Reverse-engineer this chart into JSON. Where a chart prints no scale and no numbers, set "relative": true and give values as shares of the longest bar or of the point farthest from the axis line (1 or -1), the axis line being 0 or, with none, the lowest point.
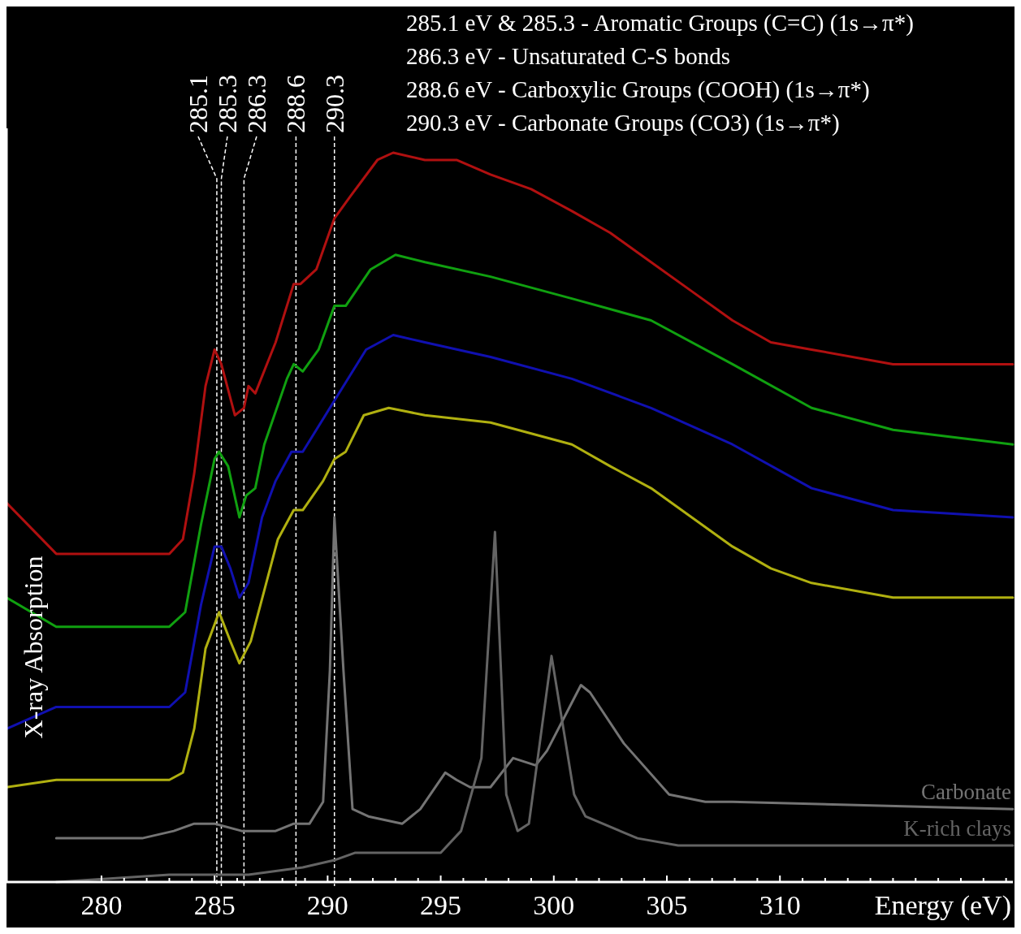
{
  "chart_data": {
    "type": "line",
    "relative": true,
    "xlabel": "Energy (eV)",
    "ylabel": "X-ray Absorption",
    "annotations": [
      "285.1 eV & 285.3 - Aromatic Groups (C=C) (1s→π*)",
      "286.3 eV - Unsaturated C-S bonds",
      "288.6 eV - Carboxylic Groups (COOH) (1s→π*)",
      "290.3 eV - Carbonate Groups (CO3) (1s→π*)"
    ],
    "xlim": [
      275.8,
      320.3
    ],
    "xticks": [
      280,
      {
        "value": 281,
        "label": null
      },
      {
        "value": 282,
        "label": null
      },
      {
        "value": 283,
        "label": null
      },
      {
        "value": 284,
        "label": null
      },
      285,
      {
        "value": 286,
        "label": null
      },
      {
        "value": 287,
        "label": null
      },
      {
        "value": 288,
        "label": null
      },
      {
        "value": 289,
        "label": null
      },
      290,
      {
        "value": 291,
        "label": null
      },
      {
        "value": 292,
        "label": null
      },
      {
        "value": 293,
        "label": null
      },
      {
        "value": 294,
        "label": null
      },
      295,
      {
        "value": 296,
        "label": null
      },
      {
        "value": 297,
        "label": null
      },
      {
        "value": 298,
        "label": null
      },
      {
        "value": 299,
        "label": null
      },
      300,
      {
        "value": 301,
        "label": null
      },
      {
        "value": 302,
        "label": null
      },
      {
        "value": 303,
        "label": null
      },
      {
        "value": 304,
        "label": null
      },
      305,
      {
        "value": 306,
        "label": null
      },
      {
        "value": 307,
        "label": null
      },
      {
        "value": 308,
        "label": null
      },
      {
        "value": 309,
        "label": null
      },
      310,
      {
        "value": 311,
        "label": null
      },
      {
        "value": 312,
        "label": null
      },
      {
        "value": 313,
        "label": null
      },
      {
        "value": 314,
        "label": null
      },
      {
        "value": 315,
        "label": null
      },
      {
        "value": 316,
        "label": null
      },
      {
        "value": 317,
        "label": null
      },
      {
        "value": 318,
        "label": null
      },
      {
        "value": 319,
        "label": null
      },
      {
        "value": 320,
        "label": null
      }
    ],
    "ref_lines": [
      {
        "axis": "x",
        "value": 285.1,
        "label": "285.1",
        "color": "#ffffff",
        "line_style": "dashed"
      },
      {
        "axis": "x",
        "value": 285.3,
        "label": "285.3",
        "color": "#ffffff",
        "line_style": "dashed"
      },
      {
        "axis": "x",
        "value": 286.3,
        "label": "286.3",
        "color": "#ffffff",
        "line_style": "dashed"
      },
      {
        "axis": "x",
        "value": 288.6,
        "label": "288.6",
        "color": "#ffffff",
        "line_style": "dashed"
      },
      {
        "axis": "x",
        "value": 290.3,
        "label": "290.3",
        "color": "#ffffff",
        "line_style": "dashed"
      }
    ],
    "series": [
      {
        "color": "#b01010",
        "x": [
          275.8,
          278.0,
          283.0,
          283.6,
          284.1,
          284.6,
          285.0,
          285.3,
          285.9,
          286.3,
          286.5,
          286.8,
          287.7,
          288.5,
          288.8,
          289.5,
          290.3,
          291.0,
          292.2,
          292.9,
          294.3,
          295.7,
          297.2,
          299.0,
          300.8,
          302.5,
          304.3,
          306.1,
          307.9,
          309.6,
          311.4,
          315.0,
          320.3
        ],
        "values": [
          0.52,
          0.45,
          0.45,
          0.47,
          0.56,
          0.68,
          0.73,
          0.71,
          0.64,
          0.65,
          0.68,
          0.67,
          0.74,
          0.82,
          0.82,
          0.84,
          0.91,
          0.94,
          0.99,
          1.0,
          0.99,
          0.99,
          0.97,
          0.95,
          0.92,
          0.89,
          0.85,
          0.81,
          0.77,
          0.74,
          0.73,
          0.71,
          0.71
        ]
      },
      {
        "color": "#10a010",
        "x": [
          275.8,
          278.0,
          283.0,
          283.7,
          284.4,
          285.0,
          285.2,
          285.6,
          286.1,
          286.4,
          286.8,
          287.2,
          288.2,
          288.5,
          288.9,
          289.6,
          290.3,
          290.8,
          291.9,
          293.0,
          294.3,
          297.2,
          300.8,
          304.3,
          307.9,
          311.4,
          315.0,
          320.3
        ],
        "values": [
          0.39,
          0.35,
          0.35,
          0.37,
          0.49,
          0.58,
          0.59,
          0.57,
          0.5,
          0.53,
          0.54,
          0.6,
          0.69,
          0.71,
          0.7,
          0.73,
          0.79,
          0.79,
          0.84,
          0.86,
          0.85,
          0.83,
          0.8,
          0.77,
          0.71,
          0.65,
          0.62,
          0.6
        ]
      },
      {
        "color": "#1010b0",
        "x": [
          275.8,
          278.0,
          283.0,
          283.7,
          284.4,
          285.0,
          285.3,
          285.7,
          286.1,
          286.5,
          287.1,
          287.7,
          288.4,
          288.9,
          290.3,
          291.7,
          292.9,
          294.3,
          297.2,
          300.8,
          304.3,
          307.9,
          311.4,
          315.0,
          320.3
        ],
        "values": [
          0.21,
          0.24,
          0.24,
          0.26,
          0.38,
          0.46,
          0.46,
          0.43,
          0.39,
          0.41,
          0.5,
          0.55,
          0.59,
          0.59,
          0.66,
          0.73,
          0.75,
          0.74,
          0.72,
          0.69,
          0.65,
          0.6,
          0.54,
          0.51,
          0.5
        ]
      },
      {
        "color": "#b0b010",
        "x": [
          275.8,
          278.0,
          283.0,
          283.6,
          284.1,
          284.6,
          285.2,
          285.7,
          286.1,
          286.6,
          287.2,
          287.8,
          288.5,
          288.9,
          289.8,
          290.3,
          290.8,
          291.6,
          292.7,
          294.3,
          297.2,
          300.8,
          302.5,
          304.3,
          306.1,
          307.9,
          309.6,
          311.4,
          315.0,
          320.3
        ],
        "values": [
          0.13,
          0.14,
          0.14,
          0.15,
          0.21,
          0.32,
          0.37,
          0.33,
          0.3,
          0.33,
          0.4,
          0.47,
          0.51,
          0.51,
          0.55,
          0.58,
          0.59,
          0.64,
          0.65,
          0.64,
          0.63,
          0.6,
          0.57,
          0.54,
          0.5,
          0.46,
          0.43,
          0.41,
          0.39,
          0.39
        ]
      },
      {
        "name": "Carbonate",
        "color": "#747474",
        "x": [
          278.0,
          281.8,
          283.2,
          284.1,
          285.0,
          286.2,
          287.7,
          288.5,
          289.2,
          289.8,
          290.1,
          290.3,
          290.7,
          291.1,
          291.8,
          293.3,
          294.1,
          295.2,
          295.7,
          296.3,
          297.2,
          298.2,
          299.2,
          299.7,
          301.2,
          301.6,
          303.1,
          305.1,
          306.7,
          307.9,
          320.3
        ],
        "values": [
          0.06,
          0.06,
          0.07,
          0.08,
          0.08,
          0.07,
          0.07,
          0.08,
          0.08,
          0.11,
          0.29,
          0.5,
          0.29,
          0.1,
          0.09,
          0.08,
          0.1,
          0.15,
          0.14,
          0.13,
          0.13,
          0.17,
          0.16,
          0.18,
          0.27,
          0.26,
          0.19,
          0.12,
          0.11,
          0.11,
          0.1
        ]
      },
      {
        "name": "K-rich clays",
        "color": "#646464",
        "x": [
          278.0,
          283.0,
          285.1,
          286.5,
          288.9,
          290.3,
          291.2,
          295.0,
          295.9,
          296.8,
          297.4,
          297.9,
          298.4,
          298.9,
          299.9,
          300.9,
          301.4,
          303.7,
          305.5,
          307.9,
          320.3
        ],
        "values": [
          0.0,
          0.01,
          0.01,
          0.01,
          0.02,
          0.03,
          0.04,
          0.04,
          0.07,
          0.17,
          0.48,
          0.12,
          0.07,
          0.08,
          0.31,
          0.12,
          0.09,
          0.06,
          0.05,
          0.05,
          0.05
        ]
      }
    ]
  }
}
